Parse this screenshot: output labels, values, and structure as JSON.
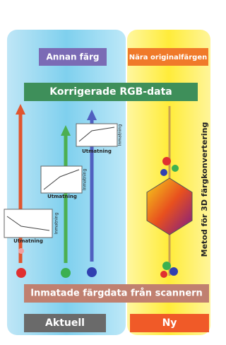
{
  "labels": {
    "other_color": "Annan färg",
    "near_original": "Nära originalfärgen",
    "corrected": "Korrigerade RGB-data",
    "method": "Metod för 3D färgkonvertering",
    "input": "Inmatade färgdata från scannern",
    "current": "Aktuell",
    "new": "Ny"
  },
  "graphs": [
    {
      "output": "Utmatning",
      "input": "Inmatning"
    },
    {
      "output": "Utmatning",
      "input": "Inmatning"
    },
    {
      "output": "Utmatning",
      "input": "Inmatning"
    }
  ]
}
